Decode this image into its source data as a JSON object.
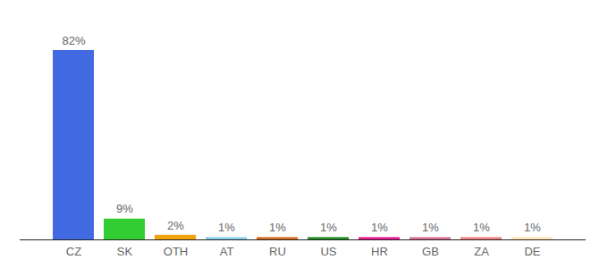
{
  "chart_data": {
    "type": "bar",
    "categories": [
      "CZ",
      "SK",
      "OTH",
      "AT",
      "RU",
      "US",
      "HR",
      "GB",
      "ZA",
      "DE"
    ],
    "values": [
      82,
      9,
      2,
      1,
      1,
      1,
      1,
      1,
      1,
      1
    ],
    "value_labels": [
      "82%",
      "9%",
      "2%",
      "1%",
      "1%",
      "1%",
      "1%",
      "1%",
      "1%",
      "1%"
    ],
    "colors": [
      "#4169e1",
      "#32cd32",
      "#f0a30a",
      "#87ceeb",
      "#d2691e",
      "#228b22",
      "#e6198c",
      "#db7093",
      "#f08080",
      "#ffe4b5"
    ],
    "ylim": [
      0,
      82
    ],
    "data_labels": true,
    "tick_labels": "x",
    "grid": false
  }
}
